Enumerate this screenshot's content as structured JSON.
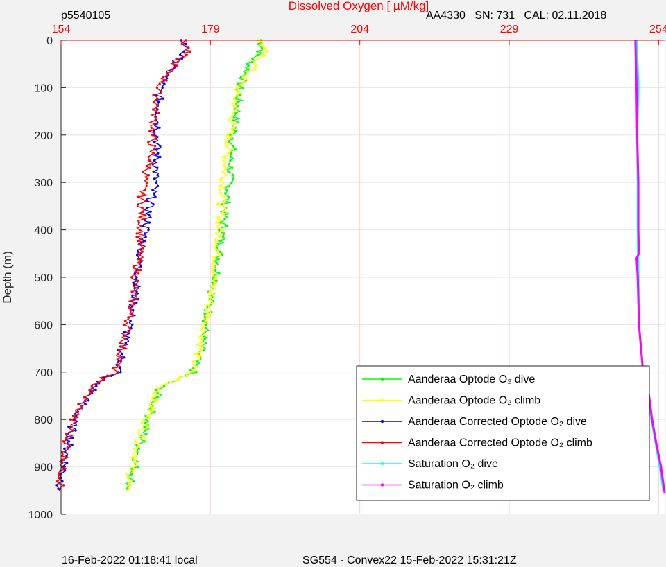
{
  "header": {
    "profile_id": "p5540105",
    "sensor_info": "AA4330   SN: 731   CAL: 02.11.2018"
  },
  "footer": {
    "local_time": "16-Feb-2022 01:18:41 local",
    "mission": "SG554 - Convex22 15-Feb-2022 15:31:21Z"
  },
  "chart_data": {
    "type": "line",
    "title": "",
    "xlabel": "Dissolved Oxygen [  µM/kg]",
    "ylabel": "Depth (m)",
    "xlim": [
      154,
      255
    ],
    "ylim": [
      0,
      1000
    ],
    "y_reversed": true,
    "x_axis_position": "top",
    "x_ticks": [
      154,
      179,
      204,
      229,
      254
    ],
    "y_ticks": [
      0,
      100,
      200,
      300,
      400,
      500,
      600,
      700,
      800,
      900,
      1000
    ],
    "grid": true,
    "legend_position": "bottom-right",
    "colors": {
      "axis_x": "#ff0000",
      "grid": "#ffd0d0"
    },
    "series": [
      {
        "name": "Aanderaa Optode O₂ dive",
        "color": "#00ff00",
        "depth": [
          0,
          20,
          50,
          100,
          150,
          200,
          250,
          300,
          350,
          400,
          450,
          500,
          550,
          600,
          650,
          700,
          730,
          760,
          800,
          850,
          900,
          950
        ],
        "values": [
          187.5,
          187.7,
          185.5,
          183.8,
          183.5,
          182.8,
          182.4,
          182.2,
          181.5,
          181.1,
          180.5,
          180,
          179,
          178.3,
          177.5,
          176,
          170.7,
          169.7,
          168.6,
          167.3,
          166.3,
          165.2
        ]
      },
      {
        "name": "Aanderaa Optode O₂ climb",
        "color": "#ffff00",
        "depth": [
          0,
          20,
          50,
          100,
          150,
          200,
          250,
          300,
          350,
          400,
          450,
          500,
          550,
          600,
          650,
          700,
          730,
          760,
          800,
          850,
          900,
          950
        ],
        "values": [
          187.4,
          188,
          186.6,
          183.5,
          182.9,
          182.2,
          181.7,
          181.2,
          180.8,
          180.5,
          180.1,
          179.6,
          179,
          178.2,
          177.2,
          176,
          170.7,
          169.5,
          168.4,
          167,
          166,
          164.8
        ]
      },
      {
        "name": "Aanderaa Corrected Optode O₂ dive",
        "color": "#0000ff",
        "depth": [
          0,
          20,
          50,
          100,
          150,
          200,
          250,
          300,
          350,
          400,
          450,
          500,
          550,
          600,
          650,
          700,
          720,
          730,
          760,
          800,
          850,
          900,
          950
        ],
        "values": [
          174.5,
          175,
          172.8,
          170.5,
          170.3,
          170.2,
          170,
          169.8,
          168.7,
          168.2,
          167.3,
          166.8,
          166.2,
          165.5,
          164.3,
          163.6,
          160,
          159.8,
          158,
          156.2,
          155.3,
          154.5,
          153.8
        ]
      },
      {
        "name": "Aanderaa Corrected Optode O₂ climb",
        "color": "#ff0000",
        "depth": [
          0,
          20,
          50,
          100,
          150,
          200,
          250,
          300,
          350,
          400,
          450,
          500,
          550,
          600,
          650,
          700,
          720,
          730,
          760,
          800,
          850,
          900,
          950
        ],
        "values": [
          174.3,
          175.2,
          173,
          170.3,
          169.8,
          169.3,
          169,
          167.8,
          167.5,
          167.4,
          167.1,
          166.5,
          166,
          165.2,
          164.3,
          163,
          160,
          159.5,
          157.8,
          156,
          155,
          154.3,
          153.8
        ]
      },
      {
        "name": "Saturation O₂ dive",
        "color": "#00ffff",
        "depth": [
          0,
          100,
          200,
          300,
          400,
          500,
          600,
          700,
          750,
          800,
          850,
          900,
          950
        ],
        "values": [
          250.3,
          250.6,
          250.4,
          250.5,
          250.5,
          250.6,
          250.7,
          251.4,
          252.2,
          252.8,
          253.5,
          254.2,
          254.8
        ]
      },
      {
        "name": "Saturation O₂ climb",
        "color": "#ff00ff",
        "depth": [
          0,
          100,
          200,
          300,
          400,
          450,
          460,
          500,
          600,
          700,
          750,
          800,
          850,
          900,
          955
        ],
        "values": [
          250.1,
          250.3,
          250.4,
          250.6,
          250.6,
          250.7,
          250.3,
          250.5,
          250.7,
          251.4,
          252.4,
          252.9,
          253.6,
          254.4,
          255
        ]
      }
    ]
  }
}
